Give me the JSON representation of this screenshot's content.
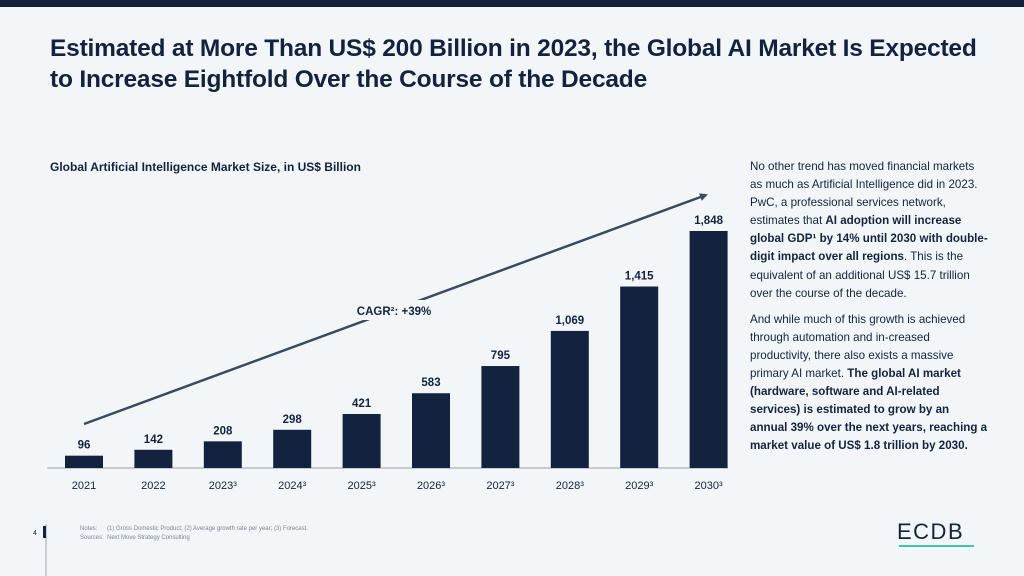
{
  "title": "Estimated at More Than US$ 200 Billion in 2023, the Global AI Market Is Expected to Increase Eightfold Over the Course of the Decade",
  "page_number": "4",
  "chart_data": {
    "type": "bar",
    "title": "Global Artificial Intelligence Market Size, in US$ Billion",
    "categories": [
      "2021",
      "2022",
      "2023³",
      "2024³",
      "2025³",
      "2026³",
      "2027³",
      "2028³",
      "2029³",
      "2030³"
    ],
    "values": [
      96,
      142,
      208,
      298,
      421,
      583,
      795,
      1069,
      1415,
      1848
    ],
    "value_labels": [
      "96",
      "142",
      "208",
      "298",
      "421",
      "583",
      "795",
      "1,069",
      "1,415",
      "1,848"
    ],
    "ylim": [
      0,
      1848
    ],
    "annotation": "CAGR²: +39%",
    "bar_color": "#13233f"
  },
  "side_text": {
    "p1_a": "No other trend has moved financial markets as much as Artificial Intelligence did in 2023. PwC, a professional services network, estimates that ",
    "p1_bold": "AI adoption will increase global GDP¹ by 14% until 2030 with double-digit impact over all regions",
    "p1_b": ". This is the equivalent of an additional US$ 15.7 trillion over the course of the decade.",
    "p2_a": "And while much of this growth is achieved through automation and in-creased productivity, there also exists a massive primary AI market. ",
    "p2_bold": "The global AI market (hardware, software and AI-related services) is estimated to grow by an annual 39% over the next years, reaching a market value of US$ 1.8 trillion by 2030."
  },
  "footer": {
    "notes_label": "Notes:",
    "notes_text": "(1) Gross Domestic Product; (2) Average growth rate per year; (3) Forecast.",
    "sources_label": "Sources:",
    "sources_text": "Next Move Strategy Consulting"
  },
  "logo": "ECDB",
  "colors": {
    "navy": "#13233f",
    "accent": "#3ec7a6",
    "background": "#f3f6f9"
  }
}
